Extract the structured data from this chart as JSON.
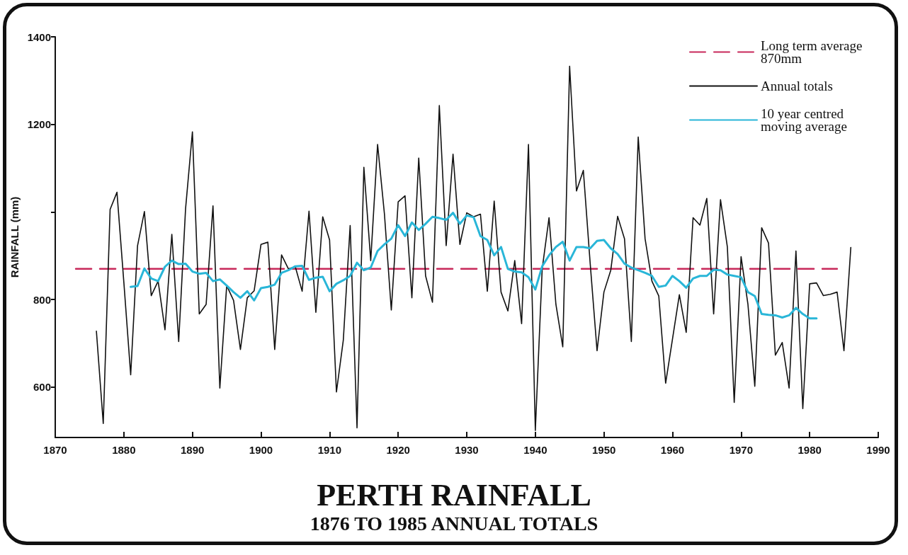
{
  "chart_data": {
    "type": "line",
    "title": "PERTH RAINFALL",
    "subtitle": "1876 TO 1985 ANNUAL TOTALS",
    "ylabel": "RAINFALL (mm)",
    "xlim": [
      1870,
      1990
    ],
    "xticks": [
      1870,
      1880,
      1890,
      1900,
      1910,
      1920,
      1930,
      1940,
      1950,
      1960,
      1970,
      1980,
      1990
    ],
    "ylim": [
      485,
      1400
    ],
    "yticks": [
      600,
      800,
      {
        "value": 1000,
        "label": null
      },
      1200,
      1400
    ],
    "grid": false,
    "legend": "top right",
    "marker": "none",
    "series": [
      {
        "name": "Long term average 870mm",
        "color": "#c8285a",
        "line_style": "dashed",
        "x": [
          1873,
          1984
        ],
        "values": [
          870,
          870
        ]
      },
      {
        "name": "Annual totals",
        "color": "#111111",
        "line_style": "solid",
        "x": [
          1876,
          1877,
          1878,
          1879,
          1880,
          1881,
          1882,
          1883,
          1884,
          1885,
          1886,
          1887,
          1888,
          1889,
          1890,
          1891,
          1892,
          1893,
          1894,
          1895,
          1896,
          1897,
          1898,
          1899,
          1900,
          1901,
          1902,
          1903,
          1904,
          1905,
          1906,
          1907,
          1908,
          1909,
          1910,
          1911,
          1912,
          1913,
          1914,
          1915,
          1916,
          1917,
          1918,
          1919,
          1920,
          1921,
          1922,
          1923,
          1924,
          1925,
          1926,
          1927,
          1928,
          1929,
          1930,
          1931,
          1932,
          1933,
          1934,
          1935,
          1936,
          1937,
          1938,
          1939,
          1940,
          1941,
          1942,
          1943,
          1944,
          1945,
          1946,
          1947,
          1948,
          1949,
          1950,
          1951,
          1952,
          1953,
          1954,
          1955,
          1956,
          1957,
          1958,
          1959,
          1960,
          1961,
          1962,
          1963,
          1964,
          1965,
          1966,
          1967,
          1968,
          1969,
          1970,
          1971,
          1972,
          1973,
          1974,
          1975,
          1976,
          1977,
          1978,
          1979,
          1980,
          1981,
          1982,
          1983,
          1984,
          1985,
          1986
        ],
        "values": [
          728,
          517,
          1006,
          1045,
          840,
          628,
          923,
          1001,
          809,
          842,
          731,
          949,
          704,
          1007,
          1183,
          767,
          789,
          1014,
          598,
          832,
          798,
          686,
          804,
          820,
          926,
          931,
          686,
          902,
          870,
          875,
          819,
          1002,
          771,
          989,
          936,
          589,
          707,
          969,
          507,
          1102,
          889,
          1154,
          995,
          776,
          1023,
          1037,
          804,
          1123,
          854,
          794,
          1243,
          923,
          1132,
          926,
          998,
          989,
          995,
          819,
          1025,
          817,
          774,
          889,
          745,
          1154,
          501,
          870,
          987,
          789,
          692,
          1333,
          1048,
          1095,
          882,
          683,
          817,
          867,
          990,
          939,
          704,
          1171,
          939,
          842,
          808,
          609,
          710,
          811,
          725,
          987,
          970,
          1031,
          767,
          1028,
          920,
          565,
          898,
          789,
          602,
          964,
          929,
          673,
          702,
          598,
          911,
          551,
          836,
          838,
          809,
          812,
          817,
          683,
          919
        ]
      },
      {
        "name": "10 year centred moving average",
        "color": "#29b6d8",
        "line_style": "solid",
        "x": [
          1881,
          1882,
          1883,
          1884,
          1885,
          1886,
          1887,
          1888,
          1889,
          1890,
          1891,
          1892,
          1893,
          1894,
          1895,
          1896,
          1897,
          1898,
          1899,
          1900,
          1901,
          1902,
          1903,
          1904,
          1905,
          1906,
          1907,
          1908,
          1909,
          1910,
          1911,
          1912,
          1913,
          1914,
          1915,
          1916,
          1917,
          1918,
          1919,
          1920,
          1921,
          1922,
          1923,
          1924,
          1925,
          1926,
          1927,
          1928,
          1929,
          1930,
          1931,
          1932,
          1933,
          1934,
          1935,
          1936,
          1937,
          1938,
          1939,
          1940,
          1941,
          1942,
          1943,
          1944,
          1945,
          1946,
          1947,
          1948,
          1949,
          1950,
          1951,
          1952,
          1953,
          1954,
          1955,
          1956,
          1957,
          1958,
          1959,
          1960,
          1961,
          1962,
          1963,
          1964,
          1965,
          1966,
          1967,
          1968,
          1969,
          1970,
          1971,
          1972,
          1973,
          1974,
          1975,
          1976,
          1977,
          1978,
          1979,
          1980,
          1981
        ],
        "values": [
          829,
          831,
          871,
          848,
          842,
          875,
          889,
          881,
          882,
          864,
          859,
          861,
          842,
          846,
          832,
          817,
          804,
          819,
          798,
          826,
          829,
          834,
          861,
          867,
          876,
          877,
          845,
          850,
          852,
          819,
          836,
          844,
          854,
          884,
          867,
          873,
          911,
          926,
          939,
          970,
          945,
          976,
          959,
          973,
          989,
          986,
          982,
          998,
          973,
          992,
          988,
          945,
          936,
          901,
          920,
          870,
          864,
          862,
          851,
          823,
          876,
          901,
          920,
          932,
          889,
          920,
          920,
          917,
          934,
          936,
          917,
          904,
          882,
          873,
          867,
          861,
          854,
          829,
          832,
          854,
          842,
          827,
          848,
          854,
          854,
          868,
          867,
          857,
          854,
          851,
          817,
          808,
          767,
          765,
          764,
          759,
          764,
          781,
          767,
          757,
          757
        ]
      }
    ]
  }
}
